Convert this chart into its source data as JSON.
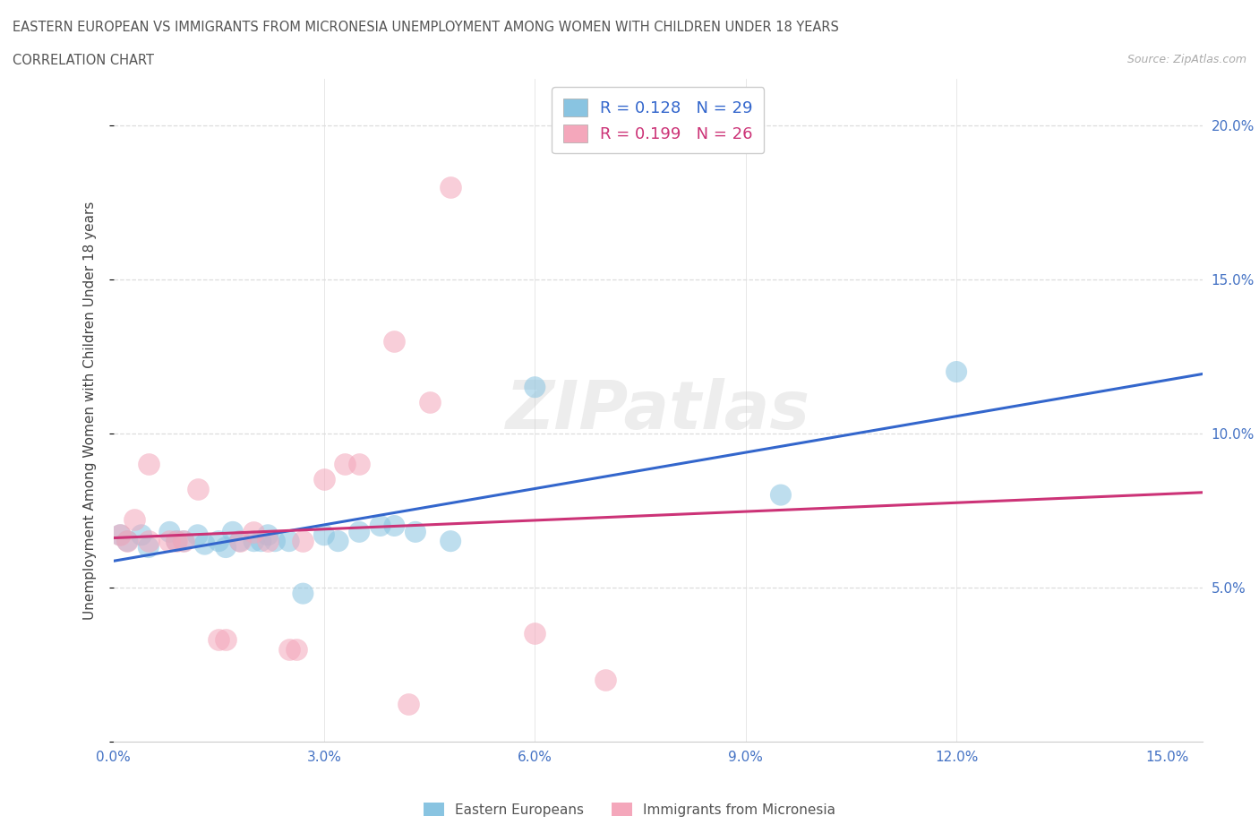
{
  "title_line1": "EASTERN EUROPEAN VS IMMIGRANTS FROM MICRONESIA UNEMPLOYMENT AMONG WOMEN WITH CHILDREN UNDER 18 YEARS",
  "title_line2": "CORRELATION CHART",
  "source": "Source: ZipAtlas.com",
  "ylabel": "Unemployment Among Women with Children Under 18 years",
  "xlim": [
    0.0,
    0.155
  ],
  "ylim": [
    0.0,
    0.215
  ],
  "xticks": [
    0.0,
    0.03,
    0.06,
    0.09,
    0.12,
    0.15
  ],
  "yticks": [
    0.0,
    0.05,
    0.1,
    0.15,
    0.2
  ],
  "ytick_labels": [
    "",
    "5.0%",
    "10.0%",
    "15.0%",
    "20.0%"
  ],
  "xtick_labels": [
    "0.0%",
    "3.0%",
    "6.0%",
    "9.0%",
    "12.0%",
    "15.0%"
  ],
  "blue_color": "#89c4e1",
  "pink_color": "#f4a7bb",
  "blue_line_color": "#3366cc",
  "pink_line_color": "#cc3377",
  "R_blue": 0.128,
  "N_blue": 29,
  "R_pink": 0.199,
  "N_pink": 26,
  "legend_label_blue": "Eastern Europeans",
  "legend_label_pink": "Immigrants from Micronesia",
  "watermark": "ZIPatlas",
  "blue_scatter": [
    [
      0.001,
      0.067
    ],
    [
      0.002,
      0.065
    ],
    [
      0.004,
      0.067
    ],
    [
      0.005,
      0.063
    ],
    [
      0.008,
      0.068
    ],
    [
      0.009,
      0.065
    ],
    [
      0.01,
      0.065
    ],
    [
      0.012,
      0.067
    ],
    [
      0.013,
      0.064
    ],
    [
      0.015,
      0.065
    ],
    [
      0.016,
      0.063
    ],
    [
      0.017,
      0.068
    ],
    [
      0.018,
      0.065
    ],
    [
      0.02,
      0.065
    ],
    [
      0.021,
      0.065
    ],
    [
      0.022,
      0.067
    ],
    [
      0.023,
      0.065
    ],
    [
      0.025,
      0.065
    ],
    [
      0.027,
      0.048
    ],
    [
      0.03,
      0.067
    ],
    [
      0.032,
      0.065
    ],
    [
      0.035,
      0.068
    ],
    [
      0.038,
      0.07
    ],
    [
      0.04,
      0.07
    ],
    [
      0.043,
      0.068
    ],
    [
      0.048,
      0.065
    ],
    [
      0.06,
      0.115
    ],
    [
      0.095,
      0.08
    ],
    [
      0.12,
      0.12
    ]
  ],
  "pink_scatter": [
    [
      0.001,
      0.067
    ],
    [
      0.002,
      0.065
    ],
    [
      0.003,
      0.072
    ],
    [
      0.005,
      0.065
    ],
    [
      0.005,
      0.09
    ],
    [
      0.008,
      0.065
    ],
    [
      0.009,
      0.065
    ],
    [
      0.01,
      0.065
    ],
    [
      0.012,
      0.082
    ],
    [
      0.015,
      0.033
    ],
    [
      0.016,
      0.033
    ],
    [
      0.018,
      0.065
    ],
    [
      0.02,
      0.068
    ],
    [
      0.022,
      0.065
    ],
    [
      0.025,
      0.03
    ],
    [
      0.026,
      0.03
    ],
    [
      0.027,
      0.065
    ],
    [
      0.03,
      0.085
    ],
    [
      0.033,
      0.09
    ],
    [
      0.035,
      0.09
    ],
    [
      0.04,
      0.13
    ],
    [
      0.042,
      0.012
    ],
    [
      0.045,
      0.11
    ],
    [
      0.048,
      0.18
    ],
    [
      0.06,
      0.035
    ],
    [
      0.07,
      0.02
    ]
  ]
}
